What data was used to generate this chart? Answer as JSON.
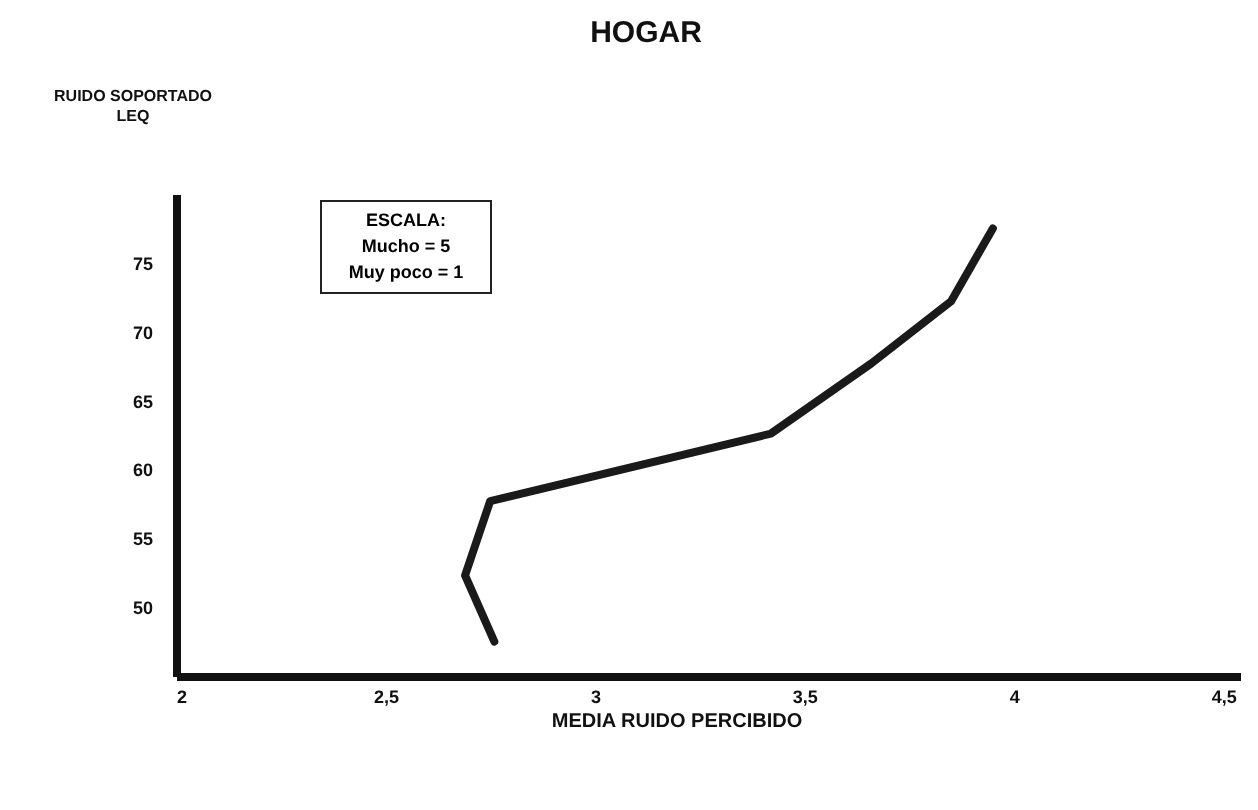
{
  "chart_data": {
    "type": "line",
    "title": "HOGAR",
    "xlabel": "MEDIA RUIDO PERCIBIDO",
    "ylabel": "RUIDO SOPORTADO\nLEQ",
    "annotations": [
      "ESCALA:\nMucho = 5\nMuy poco = 1"
    ],
    "x": [
      2.76,
      2.69,
      2.75,
      3.42,
      3.66,
      3.85,
      3.95
    ],
    "series": [
      {
        "color": "#1a1a1a",
        "values": [
          47.5,
          52.3,
          57.7,
          62.6,
          67.7,
          72.2,
          77.5
        ]
      }
    ],
    "xlim": [
      2,
      4.54
    ],
    "xticks": [
      2,
      {
        "value": 2.5,
        "label": "2,5"
      },
      3,
      {
        "value": 3.5,
        "label": "3,5"
      },
      4,
      {
        "value": 4.5,
        "label": "4,5"
      }
    ],
    "ylim": [
      45,
      80
    ],
    "yticks": [
      50,
      55,
      60,
      65,
      70,
      75
    ],
    "grid": false,
    "marker": "none",
    "line_style": "solid"
  }
}
